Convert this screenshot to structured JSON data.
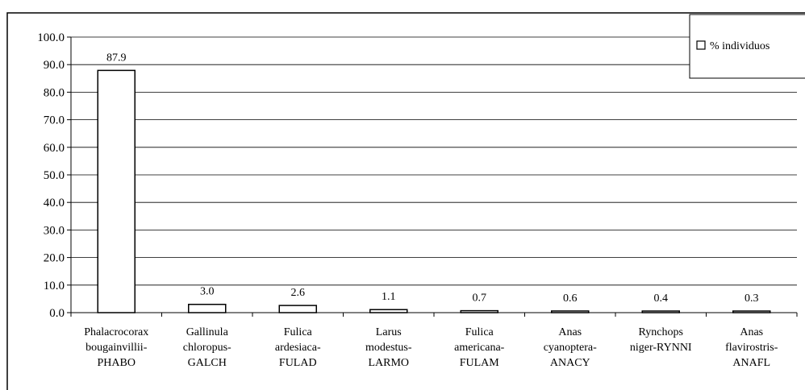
{
  "chart_data": {
    "type": "bar",
    "categories": [
      [
        "Phalacrocorax",
        "bougainvillii-",
        "PHABO"
      ],
      [
        "Gallinula",
        "chloropus-",
        "GALCH"
      ],
      [
        "Fulica",
        "ardesiaca-",
        "FULAD"
      ],
      [
        "Larus",
        "modestus-",
        "LARMO"
      ],
      [
        "Fulica",
        "americana-",
        "FULAM"
      ],
      [
        "Anas",
        "cyanoptera-",
        "ANACY"
      ],
      [
        "Rynchops",
        "niger-RYNNI"
      ],
      [
        "Anas",
        "flavirostris-",
        "ANAFL"
      ]
    ],
    "series": [
      {
        "name": "% individuos",
        "values": [
          87.9,
          3.0,
          2.6,
          1.1,
          0.7,
          0.6,
          0.4,
          0.3
        ],
        "labels": [
          "87.9",
          "3.0",
          "2.6",
          "1.1",
          "0.7",
          "0.6",
          "0.4",
          "0.3"
        ],
        "fill": "#ffffff",
        "stroke": "#000000"
      }
    ],
    "yticks": [
      "0.0",
      "10.0",
      "20.0",
      "30.0",
      "40.0",
      "50.0",
      "60.0",
      "70.0",
      "80.0",
      "90.0",
      "100.0"
    ],
    "ylim": [
      0,
      100
    ],
    "grid": true,
    "legend": {
      "placement": "top-right",
      "label": "% individuos"
    }
  }
}
